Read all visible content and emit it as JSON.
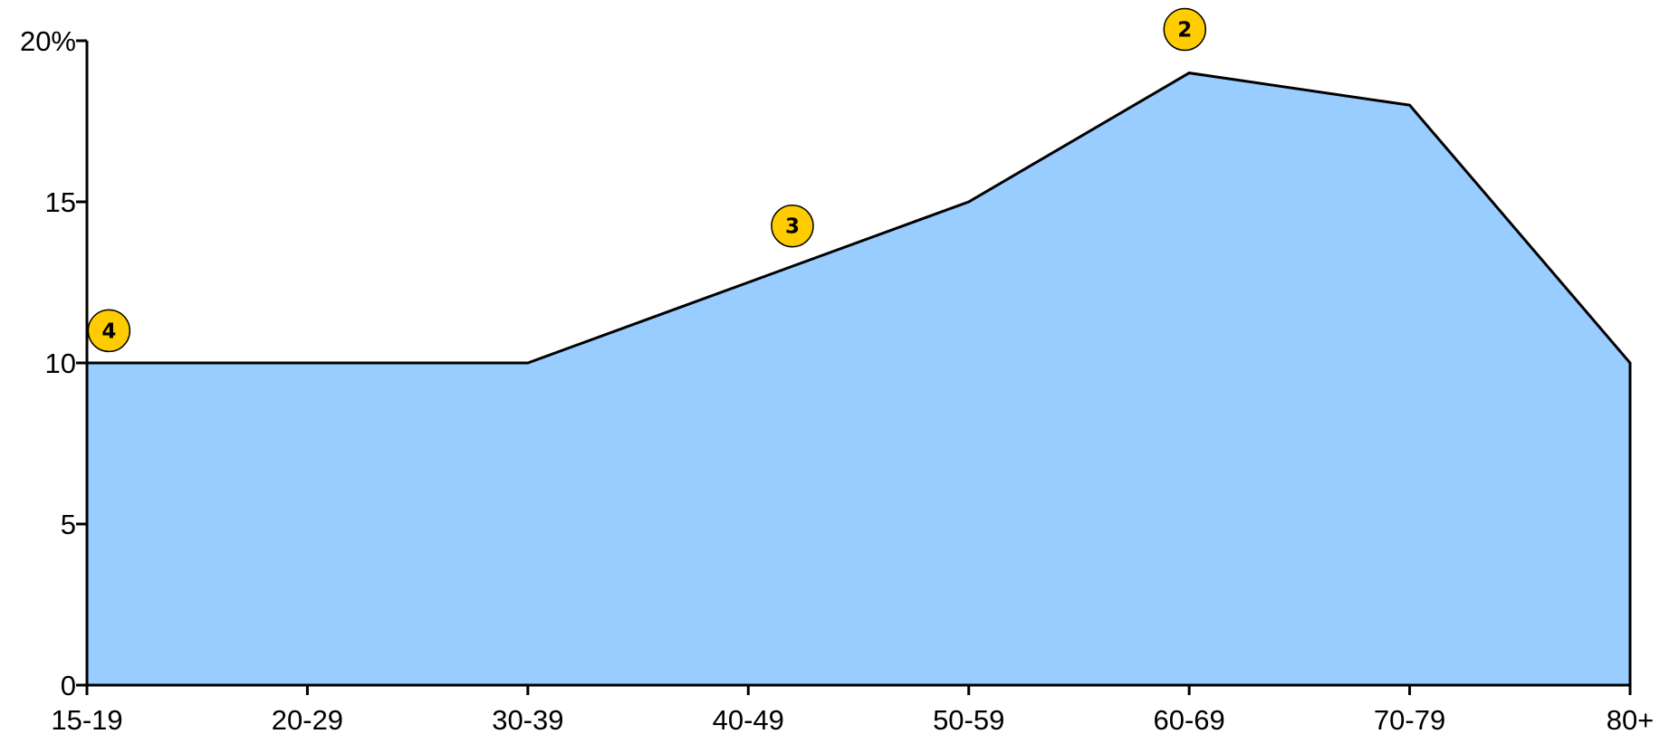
{
  "chart_data": {
    "type": "area",
    "categories": [
      "15-19",
      "20-29",
      "30-39",
      "40-49",
      "50-59",
      "60-69",
      "70-79",
      "80+"
    ],
    "values": [
      10,
      10,
      10,
      12.5,
      15,
      19,
      18,
      10
    ],
    "ylim": [
      0,
      20
    ],
    "y_ticks": [
      {
        "value": 0,
        "label": "0"
      },
      {
        "value": 5,
        "label": "5"
      },
      {
        "value": 10,
        "label": "10"
      },
      {
        "value": 15,
        "label": "15"
      },
      {
        "value": 20,
        "label": "20%"
      }
    ],
    "grid": false,
    "legend": "none",
    "colors": {
      "fill": "#99ccff",
      "line": "#000000",
      "marker": "#ffcc00"
    },
    "markers": [
      {
        "label": "4",
        "x": 0.1,
        "y": 11
      },
      {
        "label": "3",
        "x": 3.2,
        "y": 14.25
      },
      {
        "label": "2",
        "x": 4.98,
        "y": 20.35
      }
    ]
  }
}
